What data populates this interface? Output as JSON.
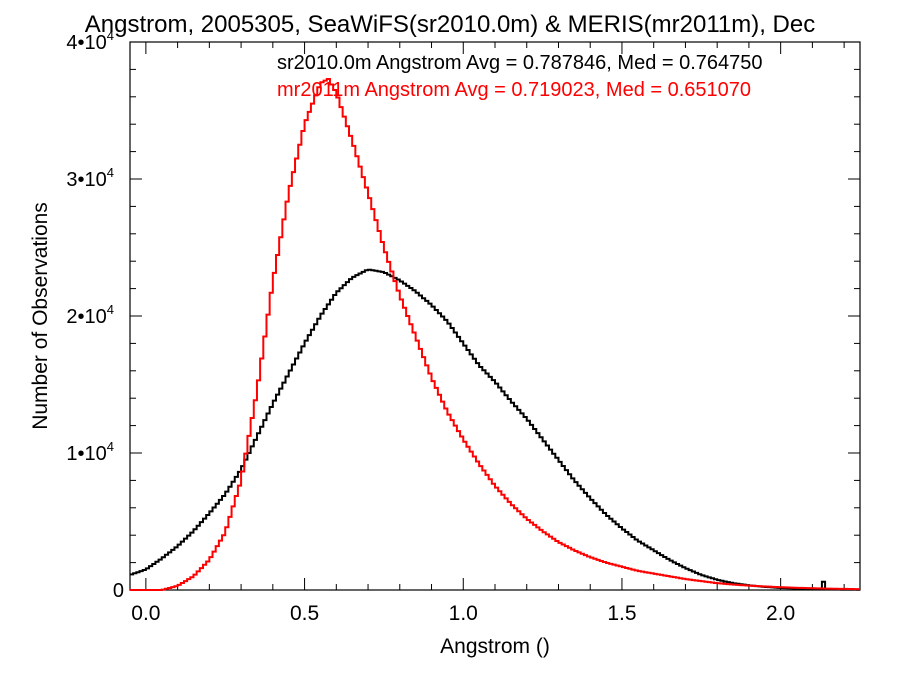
{
  "chart_data": {
    "type": "line",
    "title": "Angstrom, 2005305, SeaWiFS(sr2010.0m) & MERIS(mr2011m), Dec",
    "xlabel": "Angstrom ()",
    "ylabel": "Number of Observations",
    "xlim": [
      -0.05,
      2.25
    ],
    "ylim": [
      0,
      40000
    ],
    "x_ticks": [
      {
        "value": 0.0,
        "label": "0.0"
      },
      {
        "value": 0.5,
        "label": "0.5"
      },
      {
        "value": 1.0,
        "label": "1.0"
      },
      {
        "value": 1.5,
        "label": "1.5"
      },
      {
        "value": 2.0,
        "label": "2.0"
      }
    ],
    "y_ticks": [
      {
        "value": 0,
        "base": "0",
        "exp": ""
      },
      {
        "value": 10000,
        "base": "1•10",
        "exp": "4"
      },
      {
        "value": 20000,
        "base": "2•10",
        "exp": "4"
      },
      {
        "value": 30000,
        "base": "3•10",
        "exp": "4"
      },
      {
        "value": 40000,
        "base": "4•10",
        "exp": "4"
      }
    ],
    "grid": false,
    "series": [
      {
        "name": "sr2010.0m",
        "color": "#000000",
        "annotation": "sr2010.0m Angstrom Avg = 0.787846, Med = 0.764750",
        "points": [
          [
            -0.05,
            1100
          ],
          [
            0.0,
            1500
          ],
          [
            0.05,
            2300
          ],
          [
            0.1,
            3200
          ],
          [
            0.15,
            4300
          ],
          [
            0.2,
            5600
          ],
          [
            0.25,
            7000
          ],
          [
            0.3,
            8800
          ],
          [
            0.35,
            11200
          ],
          [
            0.4,
            13600
          ],
          [
            0.45,
            15800
          ],
          [
            0.5,
            18000
          ],
          [
            0.55,
            20000
          ],
          [
            0.6,
            21700
          ],
          [
            0.65,
            22800
          ],
          [
            0.7,
            23400
          ],
          [
            0.75,
            23200
          ],
          [
            0.8,
            22600
          ],
          [
            0.85,
            21800
          ],
          [
            0.9,
            20800
          ],
          [
            0.95,
            19600
          ],
          [
            1.0,
            18000
          ],
          [
            1.05,
            16400
          ],
          [
            1.1,
            15200
          ],
          [
            1.15,
            13800
          ],
          [
            1.2,
            12500
          ],
          [
            1.25,
            11000
          ],
          [
            1.3,
            9500
          ],
          [
            1.35,
            8000
          ],
          [
            1.4,
            6700
          ],
          [
            1.45,
            5500
          ],
          [
            1.5,
            4500
          ],
          [
            1.55,
            3600
          ],
          [
            1.6,
            2900
          ],
          [
            1.65,
            2200
          ],
          [
            1.7,
            1600
          ],
          [
            1.75,
            1100
          ],
          [
            1.8,
            750
          ],
          [
            1.85,
            500
          ],
          [
            1.9,
            340
          ],
          [
            1.95,
            230
          ],
          [
            2.0,
            150
          ],
          [
            2.05,
            100
          ],
          [
            2.1,
            70
          ],
          [
            2.125,
            50
          ],
          [
            2.13,
            600
          ],
          [
            2.14,
            600
          ],
          [
            2.145,
            40
          ],
          [
            2.2,
            30
          ],
          [
            2.25,
            20
          ]
        ]
      },
      {
        "name": "mr2011m",
        "color": "#ff0000",
        "annotation": "mr2011m Angstrom Avg = 0.719023, Med = 0.651070",
        "points": [
          [
            -0.05,
            0
          ],
          [
            0.05,
            0
          ],
          [
            0.1,
            300
          ],
          [
            0.15,
            1000
          ],
          [
            0.2,
            2200
          ],
          [
            0.25,
            4200
          ],
          [
            0.3,
            8000
          ],
          [
            0.35,
            14500
          ],
          [
            0.4,
            22500
          ],
          [
            0.45,
            29000
          ],
          [
            0.5,
            34000
          ],
          [
            0.55,
            37000
          ],
          [
            0.575,
            37300
          ],
          [
            0.6,
            36300
          ],
          [
            0.65,
            32800
          ],
          [
            0.7,
            29000
          ],
          [
            0.75,
            25000
          ],
          [
            0.8,
            21500
          ],
          [
            0.85,
            18500
          ],
          [
            0.9,
            15500
          ],
          [
            0.95,
            13000
          ],
          [
            1.0,
            11000
          ],
          [
            1.05,
            9200
          ],
          [
            1.1,
            7600
          ],
          [
            1.15,
            6300
          ],
          [
            1.2,
            5200
          ],
          [
            1.25,
            4300
          ],
          [
            1.3,
            3500
          ],
          [
            1.35,
            2900
          ],
          [
            1.4,
            2400
          ],
          [
            1.45,
            2000
          ],
          [
            1.5,
            1700
          ],
          [
            1.55,
            1400
          ],
          [
            1.6,
            1200
          ],
          [
            1.65,
            1000
          ],
          [
            1.7,
            800
          ],
          [
            1.75,
            650
          ],
          [
            1.8,
            500
          ],
          [
            1.85,
            400
          ],
          [
            1.9,
            320
          ],
          [
            1.95,
            260
          ],
          [
            2.0,
            200
          ],
          [
            2.05,
            160
          ],
          [
            2.1,
            130
          ],
          [
            2.15,
            100
          ],
          [
            2.2,
            80
          ],
          [
            2.25,
            60
          ]
        ]
      }
    ]
  }
}
